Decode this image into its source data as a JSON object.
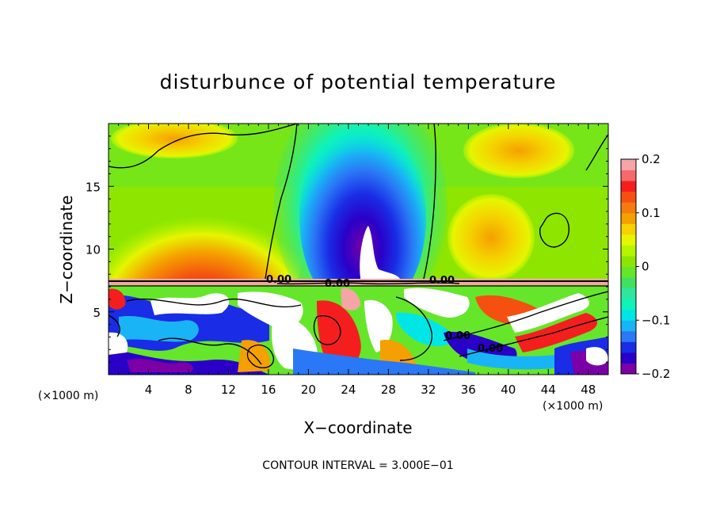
{
  "chart_data": {
    "type": "heatmap",
    "title": "disturbunce of potential temperature",
    "xlabel": "X−coordinate",
    "ylabel": "Z−coordinate",
    "x_unit_left": "(×1000 m)",
    "x_unit_right": "(×1000 m)",
    "x_ticks": [
      "4",
      "8",
      "12",
      "16",
      "20",
      "24",
      "28",
      "32",
      "36",
      "40",
      "44",
      "48"
    ],
    "x_tick_values": [
      4,
      8,
      12,
      16,
      20,
      24,
      28,
      32,
      36,
      40,
      44,
      48
    ],
    "y_ticks": [
      "5",
      "10",
      "15"
    ],
    "y_tick_values": [
      5,
      10,
      15
    ],
    "xlim": [
      0,
      50
    ],
    "ylim": [
      0,
      20
    ],
    "colorbar": {
      "ticks": [
        "0.2",
        "0.1",
        "0",
        "−0.1",
        "−0.2"
      ],
      "tick_values": [
        0.2,
        0.1,
        0,
        -0.1,
        -0.2
      ],
      "range": [
        -0.2,
        0.2
      ],
      "colors": [
        "#7b00a8",
        "#2a00c8",
        "#1a2ce6",
        "#2a78f5",
        "#19b4f5",
        "#00e6e6",
        "#10f2b8",
        "#2ee6a0",
        "#40e060",
        "#66e62a",
        "#8ee600",
        "#b4f500",
        "#e6f500",
        "#f5d200",
        "#f5a000",
        "#f57a10",
        "#f55010",
        "#f51e1e",
        "#f56a6a",
        "#f5a5a5"
      ]
    },
    "contour_labels": [
      "0.00",
      "0.00",
      "0.00",
      "0.00",
      "0.00"
    ],
    "footer": "CONTOUR INTERVAL = 3.000E−01"
  }
}
